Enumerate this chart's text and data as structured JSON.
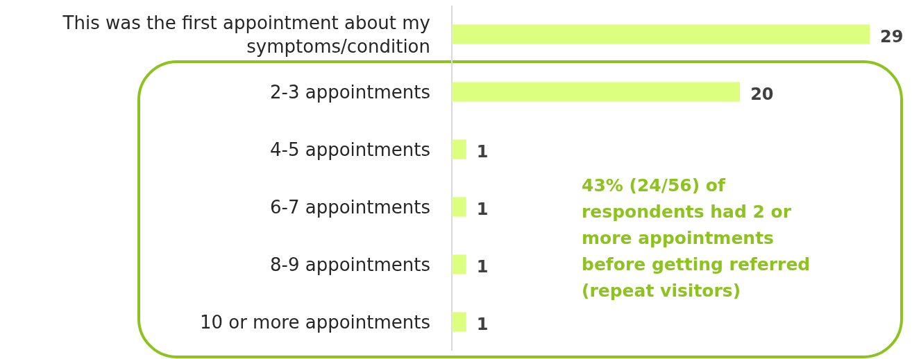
{
  "chart_data": {
    "type": "bar",
    "orientation": "horizontal",
    "categories": [
      "This was the first appointment about my symptoms/condition",
      "2-3 appointments",
      "4-5 appointments",
      "6-7 appointments",
      "8-9 appointments",
      "10 or more appointments"
    ],
    "values": [
      29,
      20,
      1,
      1,
      1,
      1
    ],
    "color": "#ddff80",
    "data_labels": true,
    "annotations": [
      "43% (24/56) of respondents had 2 or more appointments before getting referred (repeat visitors)"
    ]
  }
}
